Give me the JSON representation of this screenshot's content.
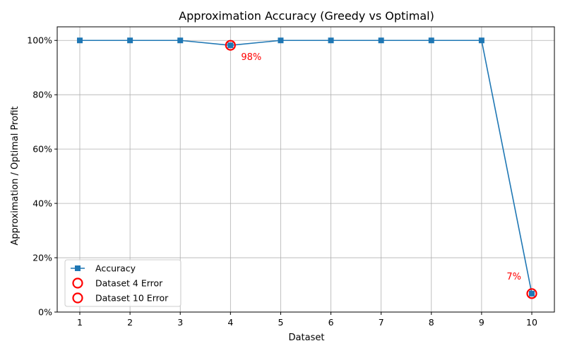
{
  "chart_data": {
    "type": "line",
    "title": "Approximation Accuracy (Greedy vs Optimal)",
    "xlabel": "Dataset",
    "ylabel": "Approximation / Optimal Profit",
    "x": [
      1,
      2,
      3,
      4,
      5,
      6,
      7,
      8,
      9,
      10
    ],
    "xticks": [
      "1",
      "2",
      "3",
      "4",
      "5",
      "6",
      "7",
      "8",
      "9",
      "10"
    ],
    "xlim": [
      0.55,
      10.45
    ],
    "ylim": [
      0,
      1.05
    ],
    "yticks": [
      0,
      0.2,
      0.4,
      0.6,
      0.8,
      1.0
    ],
    "ytick_labels": [
      "0%",
      "20%",
      "40%",
      "60%",
      "80%",
      "100%"
    ],
    "grid": true,
    "legend_position": "lower-left",
    "series": [
      {
        "name": "Accuracy",
        "color": "#1f77b4",
        "marker": "square",
        "values": [
          1.0,
          1.0,
          1.0,
          0.982,
          1.0,
          1.0,
          1.0,
          1.0,
          1.0,
          0.068
        ]
      }
    ],
    "highlights": [
      {
        "name": "Dataset 4 Error",
        "x": 4,
        "y": 0.982,
        "color": "#ff0000"
      },
      {
        "name": "Dataset 10 Error",
        "x": 10,
        "y": 0.068,
        "color": "#ff0000"
      }
    ],
    "annotations": [
      {
        "text": "98%",
        "x": 4,
        "y": 0.982,
        "color": "#ff0000",
        "anchor": "below-right"
      },
      {
        "text": "7%",
        "x": 10,
        "y": 0.068,
        "color": "#ff0000",
        "anchor": "above-left"
      }
    ]
  }
}
